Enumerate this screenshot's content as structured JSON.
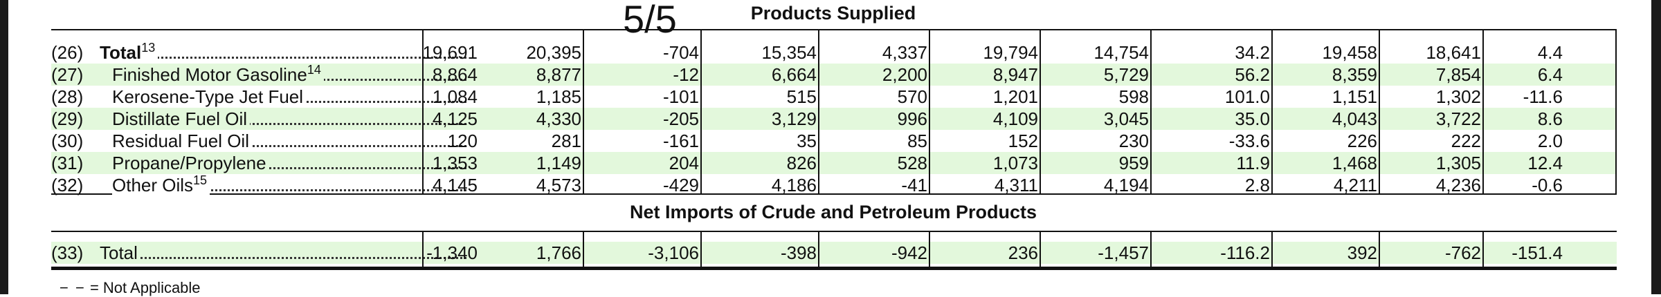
{
  "page_indicator": "5/5",
  "sections": {
    "products_supplied_title": "Products Supplied",
    "net_imports_title": "Net Imports of Crude and Petroleum Products"
  },
  "rows": [
    {
      "code": "(26)",
      "label": "Total",
      "sup": "13",
      "bold": true,
      "values": [
        "19,691",
        "20,395",
        "-704",
        "15,354",
        "4,337",
        "19,794",
        "14,754",
        "34.2",
        "19,458",
        "18,641",
        "4.4"
      ]
    },
    {
      "code": "(27)",
      "label": "Finished Motor Gasoline",
      "sup": "14",
      "values": [
        "8,864",
        "8,877",
        "-12",
        "6,664",
        "2,200",
        "8,947",
        "5,729",
        "56.2",
        "8,359",
        "7,854",
        "6.4"
      ]
    },
    {
      "code": "(28)",
      "label": "Kerosene-Type Jet Fuel",
      "sup": "",
      "values": [
        "1,084",
        "1,185",
        "-101",
        "515",
        "570",
        "1,201",
        "598",
        "101.0",
        "1,151",
        "1,302",
        "-11.6"
      ]
    },
    {
      "code": "(29)",
      "label": "Distillate Fuel Oil",
      "sup": "",
      "values": [
        "4,125",
        "4,330",
        "-205",
        "3,129",
        "996",
        "4,109",
        "3,045",
        "35.0",
        "4,043",
        "3,722",
        "8.6"
      ]
    },
    {
      "code": "(30)",
      "label": "Residual Fuel Oil",
      "sup": "",
      "values": [
        "120",
        "281",
        "-161",
        "35",
        "85",
        "152",
        "230",
        "-33.6",
        "226",
        "222",
        "2.0"
      ]
    },
    {
      "code": "(31)",
      "label": "Propane/Propylene",
      "sup": "",
      "values": [
        "1,353",
        "1,149",
        "204",
        "826",
        "528",
        "1,073",
        "959",
        "11.9",
        "1,468",
        "1,305",
        "12.4"
      ]
    },
    {
      "code": "(32)",
      "label": "Other Oils",
      "sup": "15",
      "values": [
        "4,145",
        "4,573",
        "-429",
        "4,186",
        "-41",
        "4,311",
        "4,194",
        "2.8",
        "4,211",
        "4,236",
        "-0.6"
      ]
    }
  ],
  "net_imports_row": {
    "code": "(33)",
    "label": "Total",
    "values": [
      "-1,340",
      "1,766",
      "-3,106",
      "-398",
      "-942",
      "236",
      "-1,457",
      "-116.2",
      "392",
      "-762",
      "-151.4"
    ]
  },
  "footnote": "= Not Applicable",
  "colors": {
    "row_shade": "#e3f8dc",
    "rule": "#111111"
  }
}
